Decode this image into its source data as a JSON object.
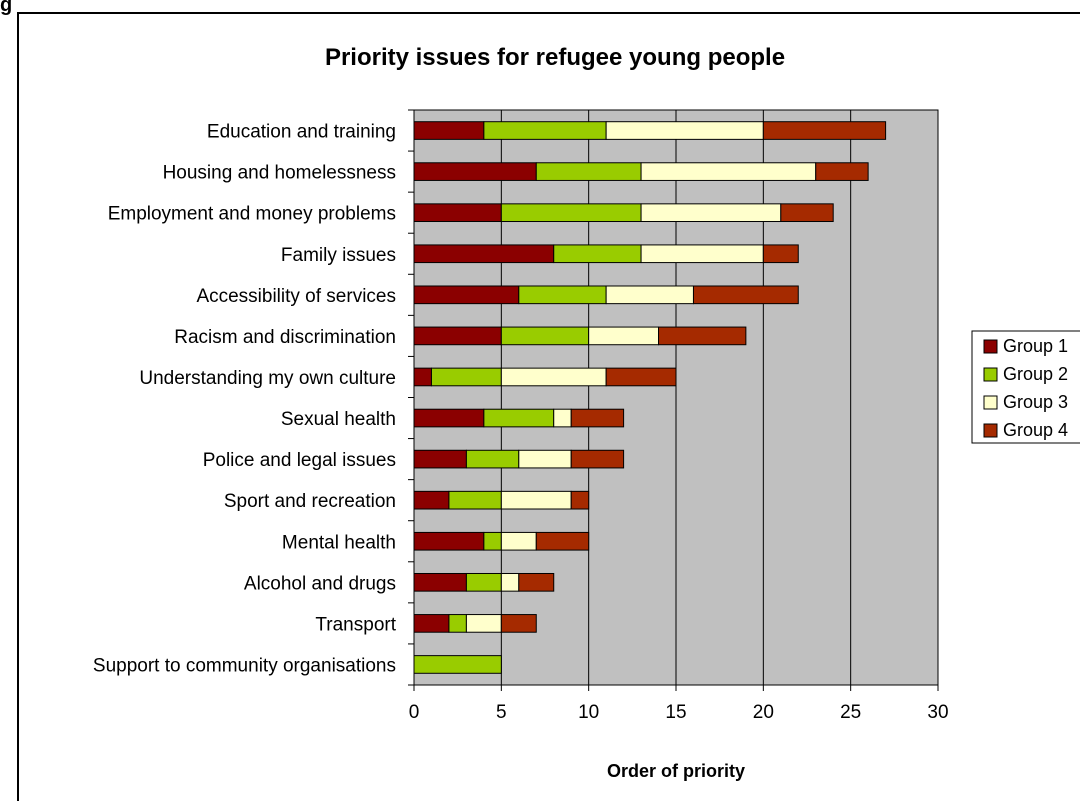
{
  "figure_label": "g",
  "chart_data": {
    "type": "bar",
    "orientation": "horizontal",
    "stacked": true,
    "title": "Priority issues for refugee young people",
    "xlabel": "Order of priority",
    "ylabel": "",
    "xlim": [
      0,
      30
    ],
    "xticks": [
      0,
      5,
      10,
      15,
      20,
      25,
      30
    ],
    "grid": true,
    "legend_position": "right",
    "categories": [
      "Education and training",
      "Housing and homelessness",
      "Employment and money problems",
      "Family issues",
      "Accessibility of services",
      "Racism and discrimination",
      "Understanding my own culture",
      "Sexual health",
      "Police and legal issues",
      "Sport and recreation",
      "Mental health",
      "Alcohol and drugs",
      "Transport",
      "Support to community organisations"
    ],
    "series": [
      {
        "name": "Group 1",
        "color": "#8b0000",
        "values": [
          4,
          7,
          5,
          8,
          6,
          5,
          1,
          4,
          3,
          2,
          4,
          3,
          2,
          0
        ]
      },
      {
        "name": "Group 2",
        "color": "#99cc00",
        "values": [
          7,
          6,
          8,
          5,
          5,
          5,
          4,
          4,
          3,
          3,
          1,
          2,
          1,
          5
        ]
      },
      {
        "name": "Group 3",
        "color": "#ffffcc",
        "values": [
          9,
          10,
          8,
          7,
          5,
          4,
          6,
          1,
          3,
          4,
          2,
          1,
          2,
          0
        ]
      },
      {
        "name": "Group 4",
        "color": "#a52a00",
        "values": [
          7,
          3,
          3,
          2,
          6,
          5,
          4,
          3,
          3,
          1,
          3,
          2,
          2,
          0
        ]
      }
    ],
    "plot_background": "#c0c0c0"
  }
}
